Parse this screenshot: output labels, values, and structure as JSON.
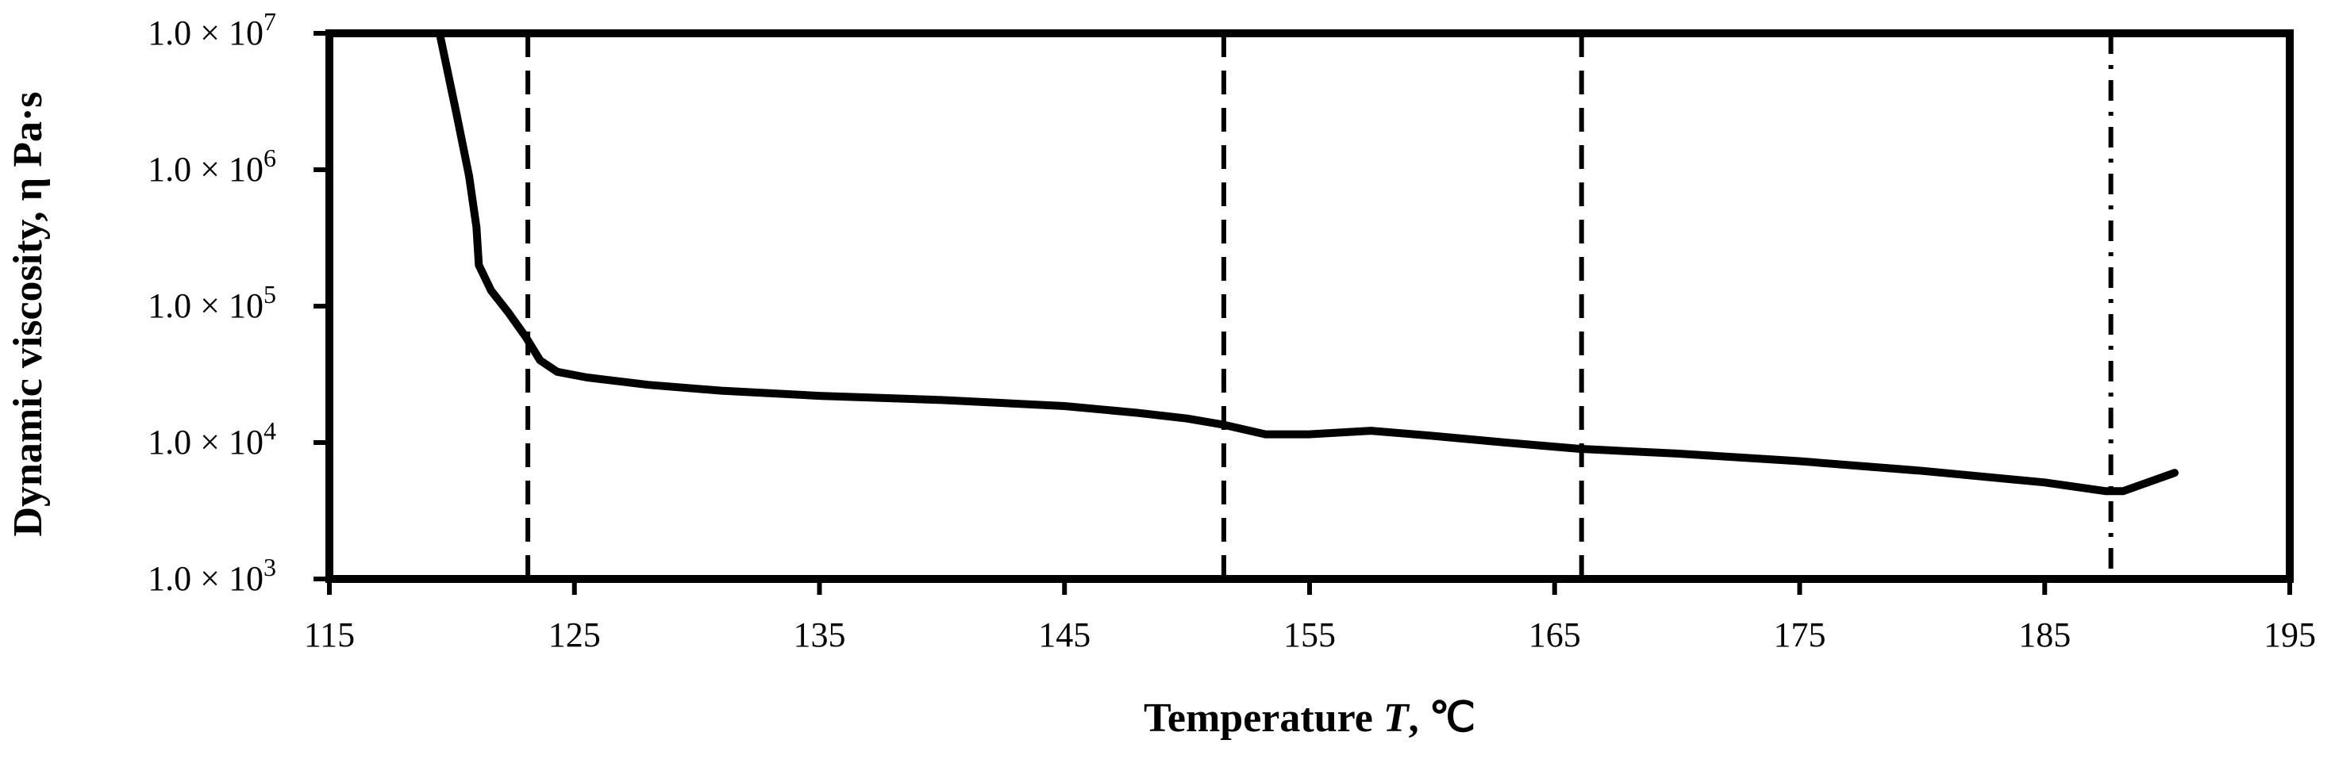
{
  "chart_data": {
    "type": "line",
    "title": "",
    "xlabel": {
      "main": "Temperature ",
      "var": "T",
      "unit": ", ℃"
    },
    "ylabel": "Dynamic viscosity, η Pa·s",
    "xlim": [
      115,
      195
    ],
    "ylim": [
      1000,
      10000000
    ],
    "yscale": "log",
    "grid": false,
    "legend": "none",
    "x_ticks": [
      "115",
      "125",
      "135",
      "145",
      "155",
      "165",
      "175",
      "185",
      "195"
    ],
    "y_ticks": [
      {
        "base": "1.0 × 10",
        "exp": "3",
        "value": 1000
      },
      {
        "base": "1.0 × 10",
        "exp": "4",
        "value": 10000
      },
      {
        "base": "1.0 × 10",
        "exp": "5",
        "value": 100000
      },
      {
        "base": "1.0 × 10",
        "exp": "6",
        "value": 1000000
      },
      {
        "base": "1.0 × 10",
        "exp": "7",
        "value": 10000000
      }
    ],
    "series": [
      {
        "color": "#000000",
        "points": [
          [
            119.5,
            10000000
          ],
          [
            120.2,
            2500000
          ],
          [
            120.7,
            900000
          ],
          [
            121.0,
            380000
          ],
          [
            121.1,
            200000
          ],
          [
            121.6,
            130000
          ],
          [
            122.3,
            90000
          ],
          [
            123.0,
            60000
          ],
          [
            123.6,
            40000
          ],
          [
            124.3,
            33000
          ],
          [
            125.5,
            30000
          ],
          [
            128,
            26500
          ],
          [
            131,
            24000
          ],
          [
            135,
            22000
          ],
          [
            140,
            20500
          ],
          [
            145,
            18500
          ],
          [
            148,
            16500
          ],
          [
            150,
            15000
          ],
          [
            151.5,
            13500
          ],
          [
            153.2,
            11500
          ],
          [
            155,
            11500
          ],
          [
            157.5,
            12200
          ],
          [
            160,
            11200
          ],
          [
            163,
            10000
          ],
          [
            166,
            9000
          ],
          [
            170,
            8300
          ],
          [
            175,
            7300
          ],
          [
            180,
            6200
          ],
          [
            185,
            5100
          ],
          [
            187.5,
            4400
          ],
          [
            188.2,
            4400
          ],
          [
            190.3,
            6000
          ]
        ]
      }
    ],
    "vlines": [
      {
        "x": 123.1,
        "style": "dashed"
      },
      {
        "x": 151.5,
        "style": "dashed"
      },
      {
        "x": 166.1,
        "style": "dashed"
      },
      {
        "x": 187.7,
        "style": "dashdot"
      }
    ]
  }
}
